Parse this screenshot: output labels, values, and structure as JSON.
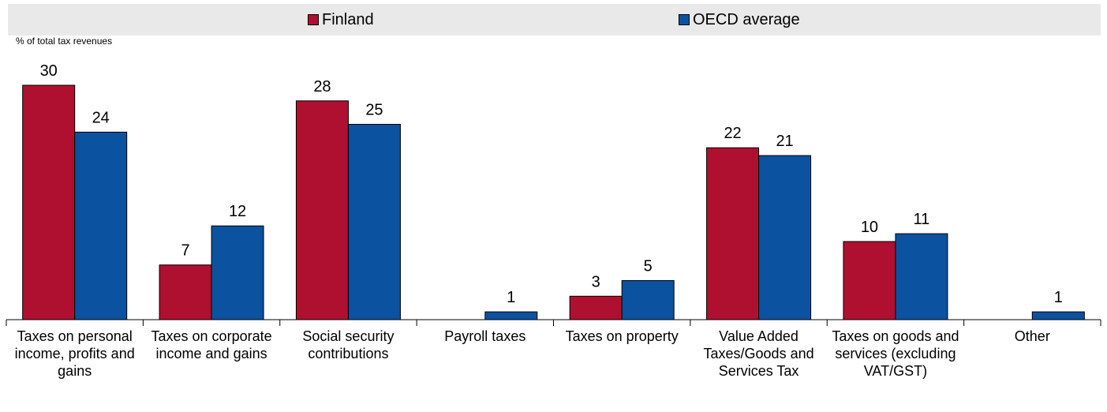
{
  "chart_data": {
    "type": "bar",
    "ylabel": "% of total tax revenues",
    "ylim": [
      0,
      30
    ],
    "grid": false,
    "legend_position": "top",
    "categories": [
      "Taxes on personal income, profits and gains",
      "Taxes on corporate income and gains",
      "Social security contributions",
      "Payroll taxes",
      "Taxes on property",
      "Value Added Taxes/Goods and Services Tax",
      "Taxes on goods and services (excluding VAT/GST)",
      "Other"
    ],
    "series": [
      {
        "name": "Finland",
        "color": "#b01030",
        "values": [
          30,
          7,
          28,
          0,
          3,
          22,
          10,
          0
        ]
      },
      {
        "name": "OECD average",
        "color": "#0b52a0",
        "values": [
          24,
          12,
          25,
          1,
          5,
          21,
          11,
          1
        ]
      }
    ]
  }
}
